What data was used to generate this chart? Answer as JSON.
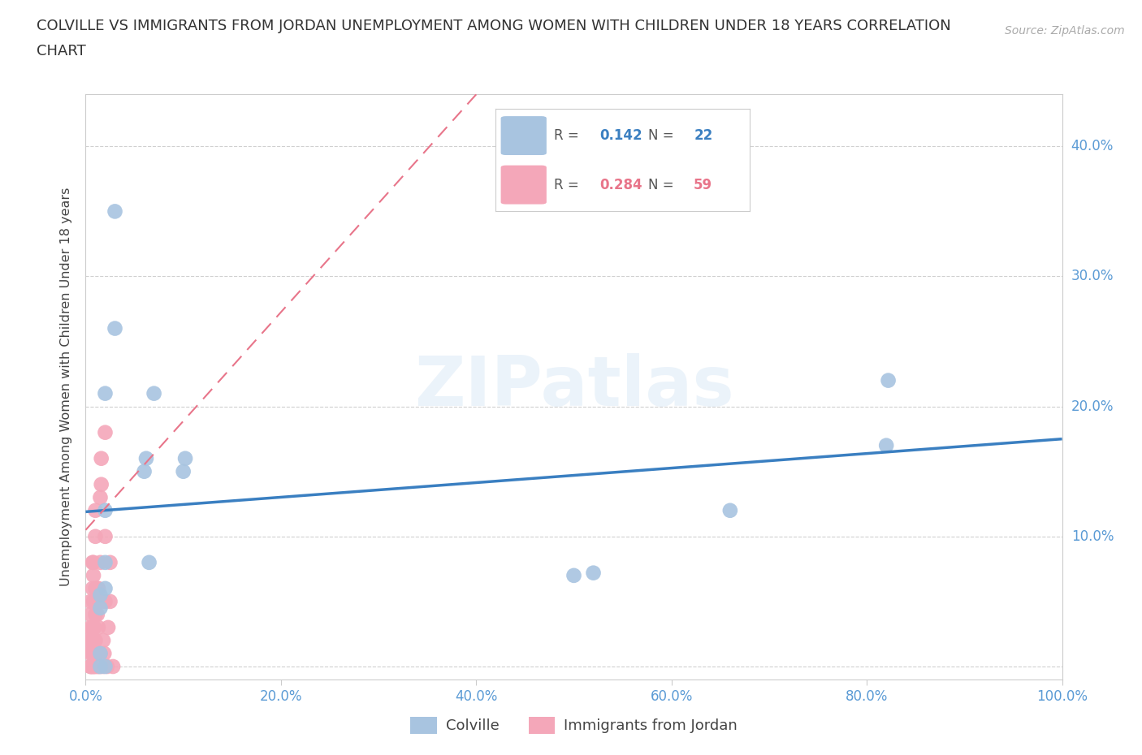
{
  "title_line1": "COLVILLE VS IMMIGRANTS FROM JORDAN UNEMPLOYMENT AMONG WOMEN WITH CHILDREN UNDER 18 YEARS CORRELATION",
  "title_line2": "CHART",
  "source": "Source: ZipAtlas.com",
  "ylabel": "Unemployment Among Women with Children Under 18 years",
  "xlim": [
    0,
    1.0
  ],
  "ylim": [
    -0.01,
    0.44
  ],
  "xticks": [
    0.0,
    0.2,
    0.4,
    0.6,
    0.8,
    1.0
  ],
  "yticks": [
    0.0,
    0.1,
    0.2,
    0.3,
    0.4
  ],
  "xticklabels": [
    "0.0%",
    "20.0%",
    "40.0%",
    "60.0%",
    "80.0%",
    "100.0%"
  ],
  "right_yticklabels": [
    "40.0%",
    "30.0%",
    "20.0%",
    "10.0%"
  ],
  "colville_color": "#a8c4e0",
  "jordan_color": "#f4a7b9",
  "colville_line_color": "#3a7fc1",
  "jordan_line_color": "#e8758a",
  "colville_R": 0.142,
  "colville_N": 22,
  "jordan_R": 0.284,
  "jordan_N": 59,
  "watermark": "ZIPatlas",
  "colville_x": [
    0.015,
    0.015,
    0.015,
    0.015,
    0.02,
    0.02,
    0.02,
    0.02,
    0.02,
    0.03,
    0.03,
    0.06,
    0.062,
    0.065,
    0.07,
    0.1,
    0.102,
    0.5,
    0.52,
    0.66,
    0.82,
    0.822
  ],
  "colville_y": [
    0.0,
    0.01,
    0.045,
    0.055,
    0.06,
    0.08,
    0.12,
    0.21,
    0.0,
    0.35,
    0.26,
    0.15,
    0.16,
    0.08,
    0.21,
    0.15,
    0.16,
    0.07,
    0.072,
    0.12,
    0.17,
    0.22
  ],
  "jordan_x": [
    0.005,
    0.005,
    0.005,
    0.005,
    0.005,
    0.005,
    0.005,
    0.005,
    0.005,
    0.006,
    0.007,
    0.007,
    0.007,
    0.007,
    0.007,
    0.007,
    0.008,
    0.008,
    0.008,
    0.008,
    0.008,
    0.008,
    0.009,
    0.009,
    0.009,
    0.01,
    0.01,
    0.01,
    0.01,
    0.01,
    0.01,
    0.01,
    0.01,
    0.012,
    0.012,
    0.012,
    0.012,
    0.013,
    0.013,
    0.013,
    0.014,
    0.015,
    0.015,
    0.015,
    0.015,
    0.015,
    0.016,
    0.016,
    0.018,
    0.018,
    0.019,
    0.02,
    0.02,
    0.02,
    0.022,
    0.023,
    0.025,
    0.025,
    0.028
  ],
  "jordan_y": [
    0.0,
    0.0,
    0.01,
    0.015,
    0.02,
    0.025,
    0.03,
    0.04,
    0.05,
    0.0,
    0.0,
    0.01,
    0.02,
    0.03,
    0.06,
    0.08,
    0.0,
    0.01,
    0.02,
    0.05,
    0.07,
    0.08,
    0.0,
    0.01,
    0.03,
    0.0,
    0.01,
    0.02,
    0.04,
    0.05,
    0.06,
    0.1,
    0.12,
    0.0,
    0.01,
    0.04,
    0.06,
    0.0,
    0.03,
    0.06,
    0.05,
    0.0,
    0.01,
    0.05,
    0.08,
    0.13,
    0.14,
    0.16,
    0.0,
    0.02,
    0.01,
    0.05,
    0.1,
    0.18,
    0.0,
    0.03,
    0.05,
    0.08,
    0.0
  ],
  "colville_trend_x": [
    0.0,
    1.0
  ],
  "colville_trend_y": [
    0.119,
    0.175
  ],
  "jordan_trend_x": [
    0.0,
    0.4
  ],
  "jordan_trend_y": [
    0.105,
    0.44
  ],
  "background_color": "#ffffff",
  "grid_color": "#d0d0d0",
  "tick_color": "#5b9bd5",
  "axis_color": "#cccccc",
  "title_color": "#333333"
}
